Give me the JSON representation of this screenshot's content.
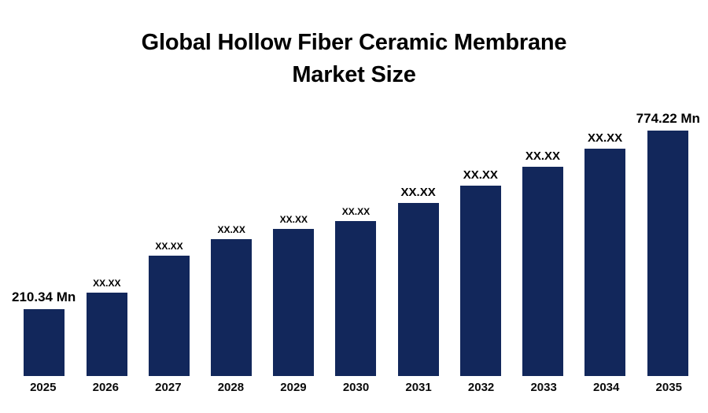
{
  "title": {
    "line1": "Global Hollow Fiber Ceramic Membrane",
    "line2": "Market Size"
  },
  "chart_data": {
    "type": "bar",
    "title": "Global Hollow Fiber Ceramic Membrane Market Size",
    "categories": [
      "2025",
      "2026",
      "2027",
      "2028",
      "2029",
      "2030",
      "2031",
      "2032",
      "2033",
      "2034",
      "2035"
    ],
    "values": [
      210.34,
      264,
      379,
      433,
      463,
      490,
      547,
      601,
      661,
      718,
      774.22
    ],
    "labels": [
      "210.34 Mn",
      "XX.XX",
      "XX.XX",
      "XX.XX",
      "XX.XX",
      "XX.XX",
      "XX.XX",
      "XX.XX",
      "XX.XX",
      "XX.XX",
      "774.22 Mn"
    ],
    "first_value_label": "210.34 Mn",
    "last_value_label": "774.22 Mn",
    "bar_color": "#12275B",
    "label_color": "#000000",
    "xlabel": "",
    "ylabel": "",
    "ylim": [
      0,
      800
    ],
    "grid": false,
    "legend": "none"
  }
}
